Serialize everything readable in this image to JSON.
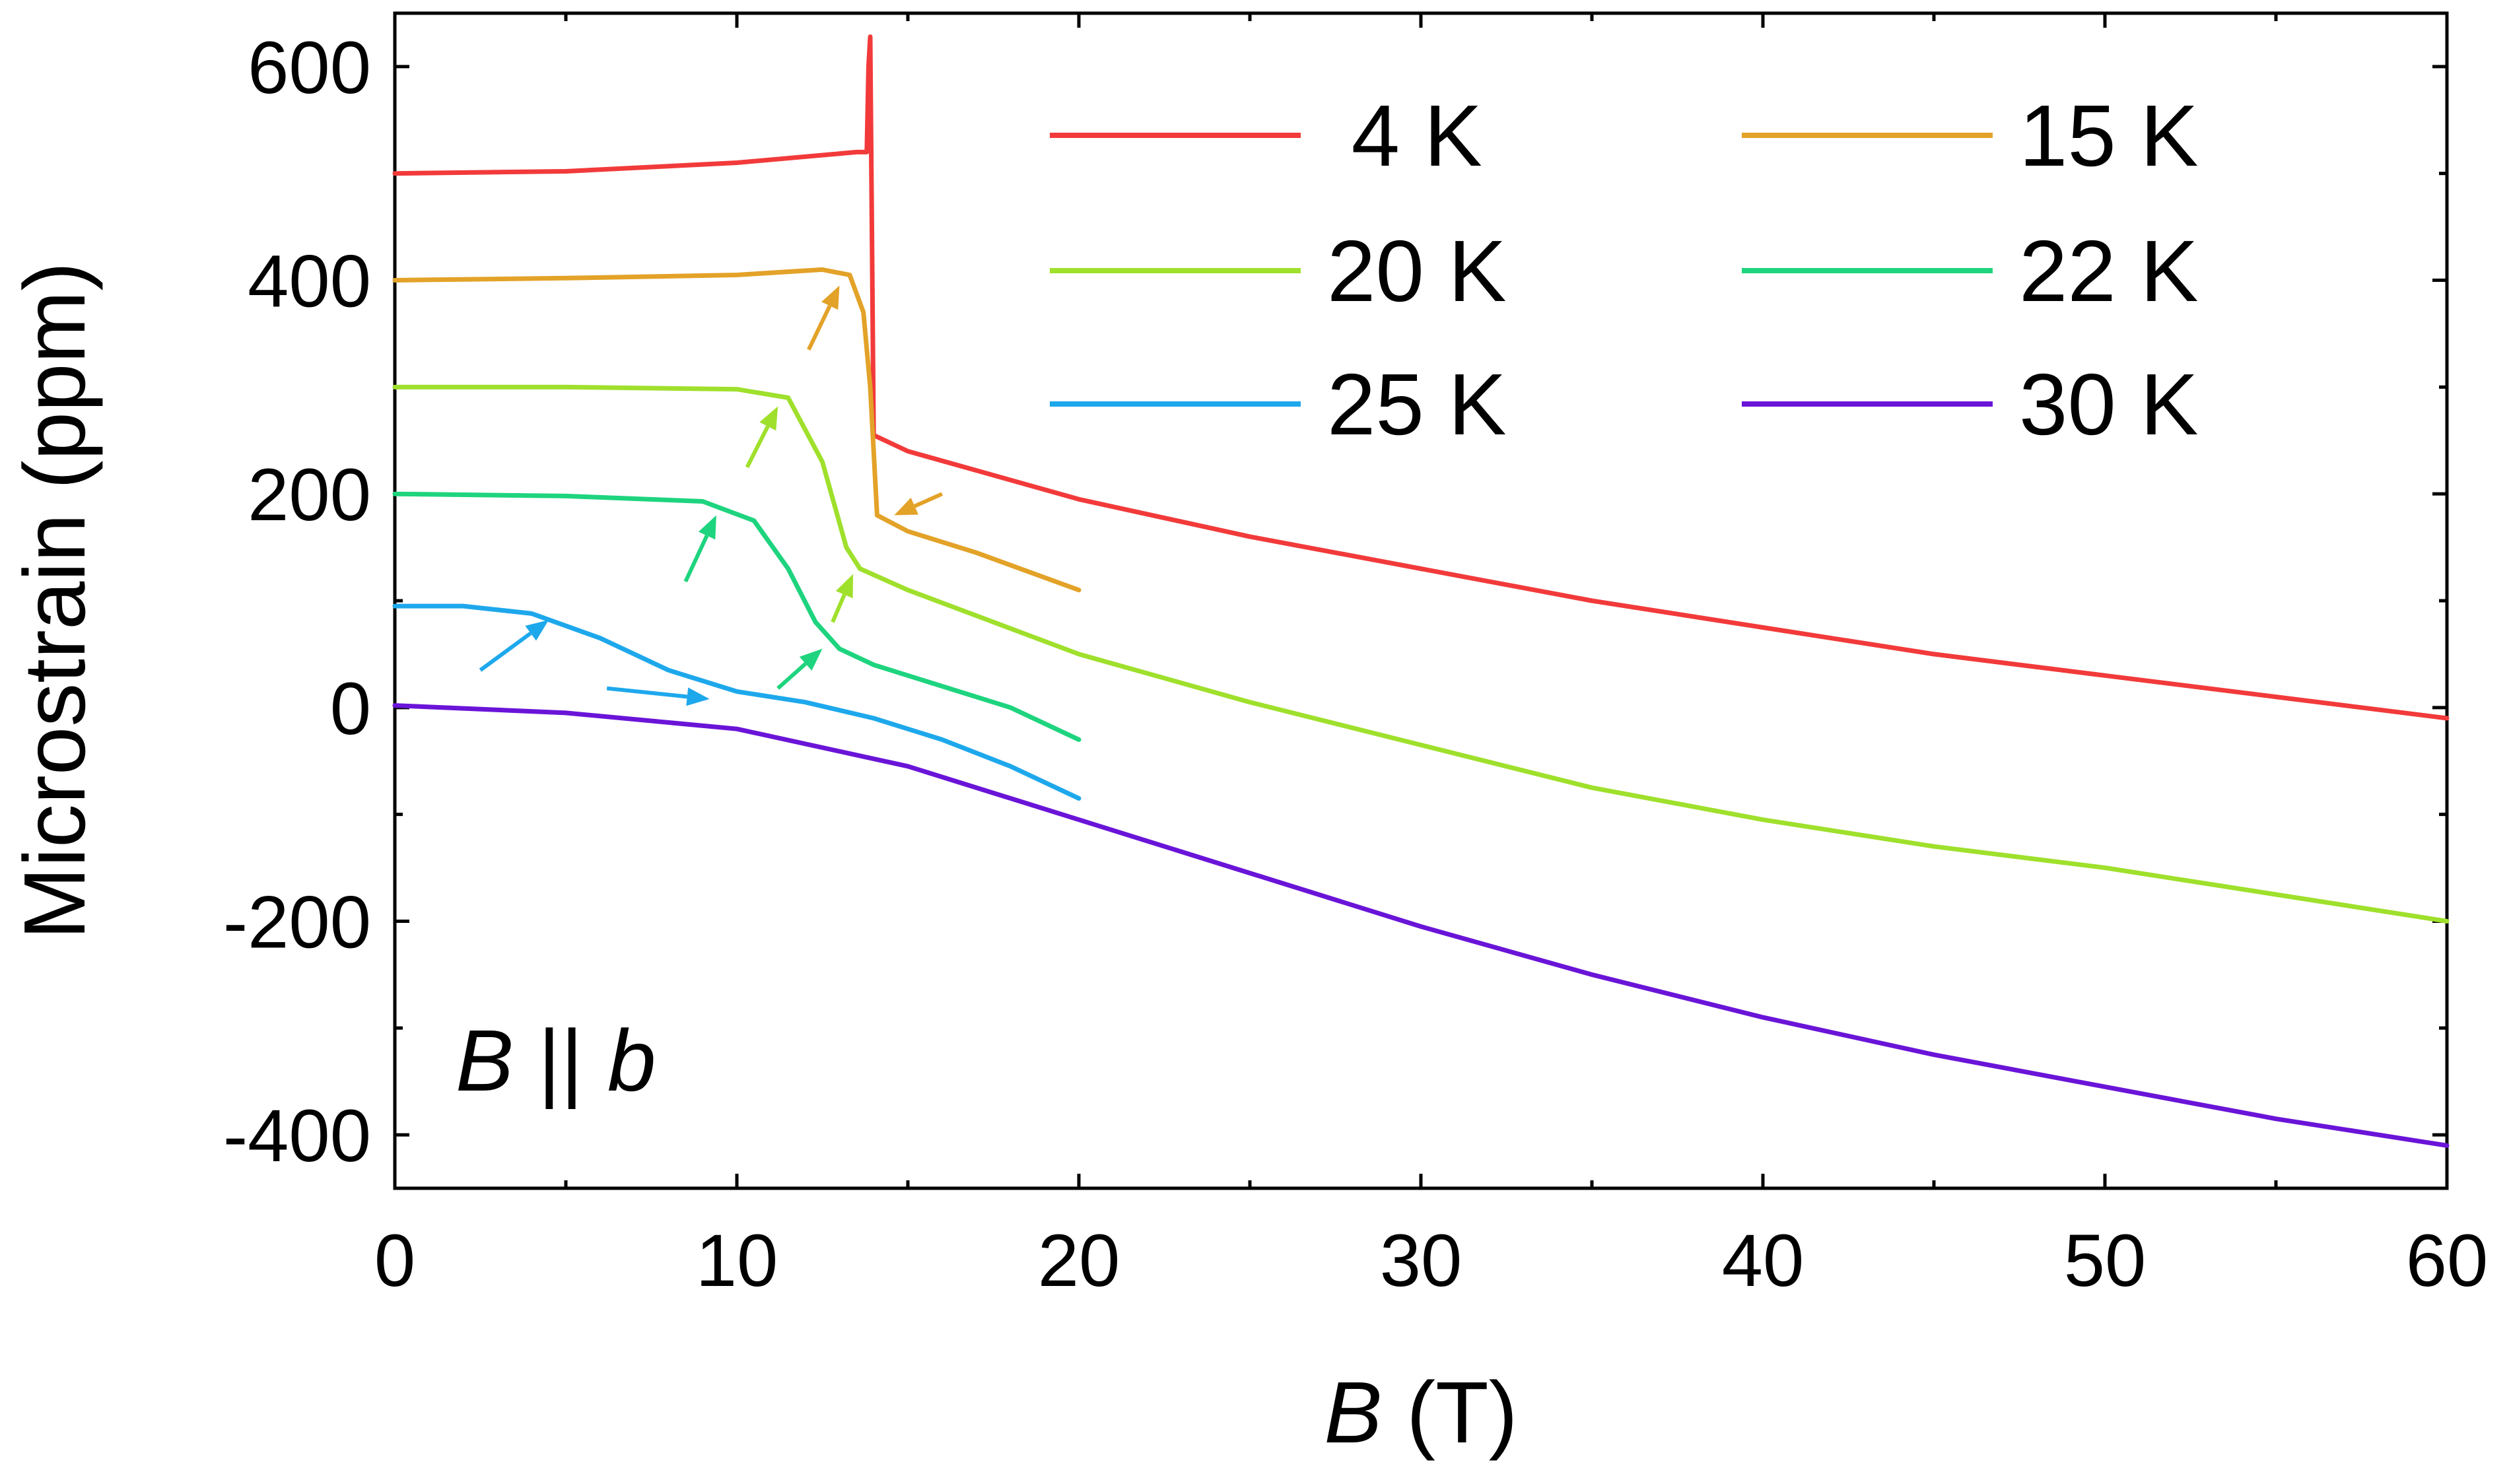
{
  "chart_data": {
    "type": "line",
    "xlabel_var": "B",
    "xlabel_unit": " (T)",
    "ylabel": "Microstrain (ppm)",
    "xlim": [
      0,
      60
    ],
    "ylim": [
      -450,
      650
    ],
    "xticks": [
      0,
      10,
      20,
      30,
      40,
      50,
      60
    ],
    "yticks": [
      -400,
      -200,
      0,
      200,
      400,
      600
    ],
    "xtick_labels": [
      "0",
      "10",
      "20",
      "30",
      "40",
      "50",
      "60"
    ],
    "ytick_labels": [
      "-400",
      "-200",
      "0",
      "200",
      "400",
      "600"
    ],
    "annotation": {
      "var": "B",
      "sep": " || ",
      "axis": "b"
    },
    "grid": false,
    "legend_position": "top-right",
    "series": [
      {
        "name": "4 K",
        "label": " 4 K",
        "color": "#f23a3a",
        "x": [
          0,
          5,
          10,
          13.5,
          13.8,
          13.85,
          13.9,
          14.0,
          15,
          20,
          25,
          30,
          35,
          40,
          45,
          50,
          55,
          60
        ],
        "y": [
          500,
          502,
          510,
          520,
          520,
          600,
          628,
          255,
          240,
          195,
          160,
          130,
          100,
          75,
          50,
          30,
          10,
          -10
        ]
      },
      {
        "name": "15 K",
        "label": "15 K",
        "color": "#e3a228",
        "x": [
          0,
          5,
          10,
          12.5,
          13.3,
          13.7,
          13.9,
          14.1,
          15,
          17,
          20
        ],
        "y": [
          400,
          402,
          405,
          410,
          405,
          370,
          300,
          180,
          165,
          145,
          110
        ]
      },
      {
        "name": "20 K",
        "label": "20 K",
        "color": "#9fe02c",
        "x": [
          0,
          5,
          10,
          11.5,
          12.5,
          13.2,
          13.6,
          15,
          20,
          25,
          30,
          35,
          40,
          45,
          50,
          55,
          60
        ],
        "y": [
          300,
          300,
          298,
          290,
          230,
          150,
          130,
          110,
          50,
          5,
          -35,
          -75,
          -105,
          -130,
          -150,
          -175,
          -200
        ]
      },
      {
        "name": "22 K",
        "label": "22 K",
        "color": "#1ed47e",
        "x": [
          0,
          5,
          9,
          10.5,
          11.5,
          12.3,
          13,
          14,
          16,
          18,
          20
        ],
        "y": [
          200,
          198,
          193,
          175,
          130,
          80,
          55,
          40,
          20,
          0,
          -30
        ]
      },
      {
        "name": "25 K",
        "label": "25 K",
        "color": "#1ea8ec",
        "x": [
          0,
          2,
          4,
          6,
          8,
          10,
          12,
          14,
          16,
          18,
          20
        ],
        "y": [
          95,
          95,
          88,
          65,
          35,
          15,
          5,
          -10,
          -30,
          -55,
          -85
        ]
      },
      {
        "name": "30 K",
        "label": "30 K",
        "color": "#6a14d8",
        "x": [
          0,
          5,
          10,
          15,
          20,
          25,
          30,
          35,
          40,
          45,
          50,
          55,
          60
        ],
        "y": [
          2,
          -5,
          -20,
          -55,
          -105,
          -155,
          -205,
          -250,
          -290,
          -325,
          -355,
          -385,
          -410
        ]
      }
    ],
    "arrows": [
      {
        "color": "#e3a228",
        "from": [
          12.1,
          335
        ],
        "to": [
          13.0,
          395
        ]
      },
      {
        "color": "#e3a228",
        "from": [
          16.0,
          200
        ],
        "to": [
          14.6,
          180
        ]
      },
      {
        "color": "#9fe02c",
        "from": [
          10.3,
          225
        ],
        "to": [
          11.2,
          282
        ]
      },
      {
        "color": "#9fe02c",
        "from": [
          12.8,
          80
        ],
        "to": [
          13.4,
          125
        ]
      },
      {
        "color": "#1ed47e",
        "from": [
          8.5,
          118
        ],
        "to": [
          9.4,
          180
        ]
      },
      {
        "color": "#1ed47e",
        "from": [
          11.2,
          18
        ],
        "to": [
          12.5,
          55
        ]
      },
      {
        "color": "#1ea8ec",
        "from": [
          2.5,
          35
        ],
        "to": [
          4.5,
          82
        ]
      },
      {
        "color": "#1ea8ec",
        "from": [
          6.2,
          18
        ],
        "to": [
          9.2,
          8
        ]
      }
    ]
  }
}
